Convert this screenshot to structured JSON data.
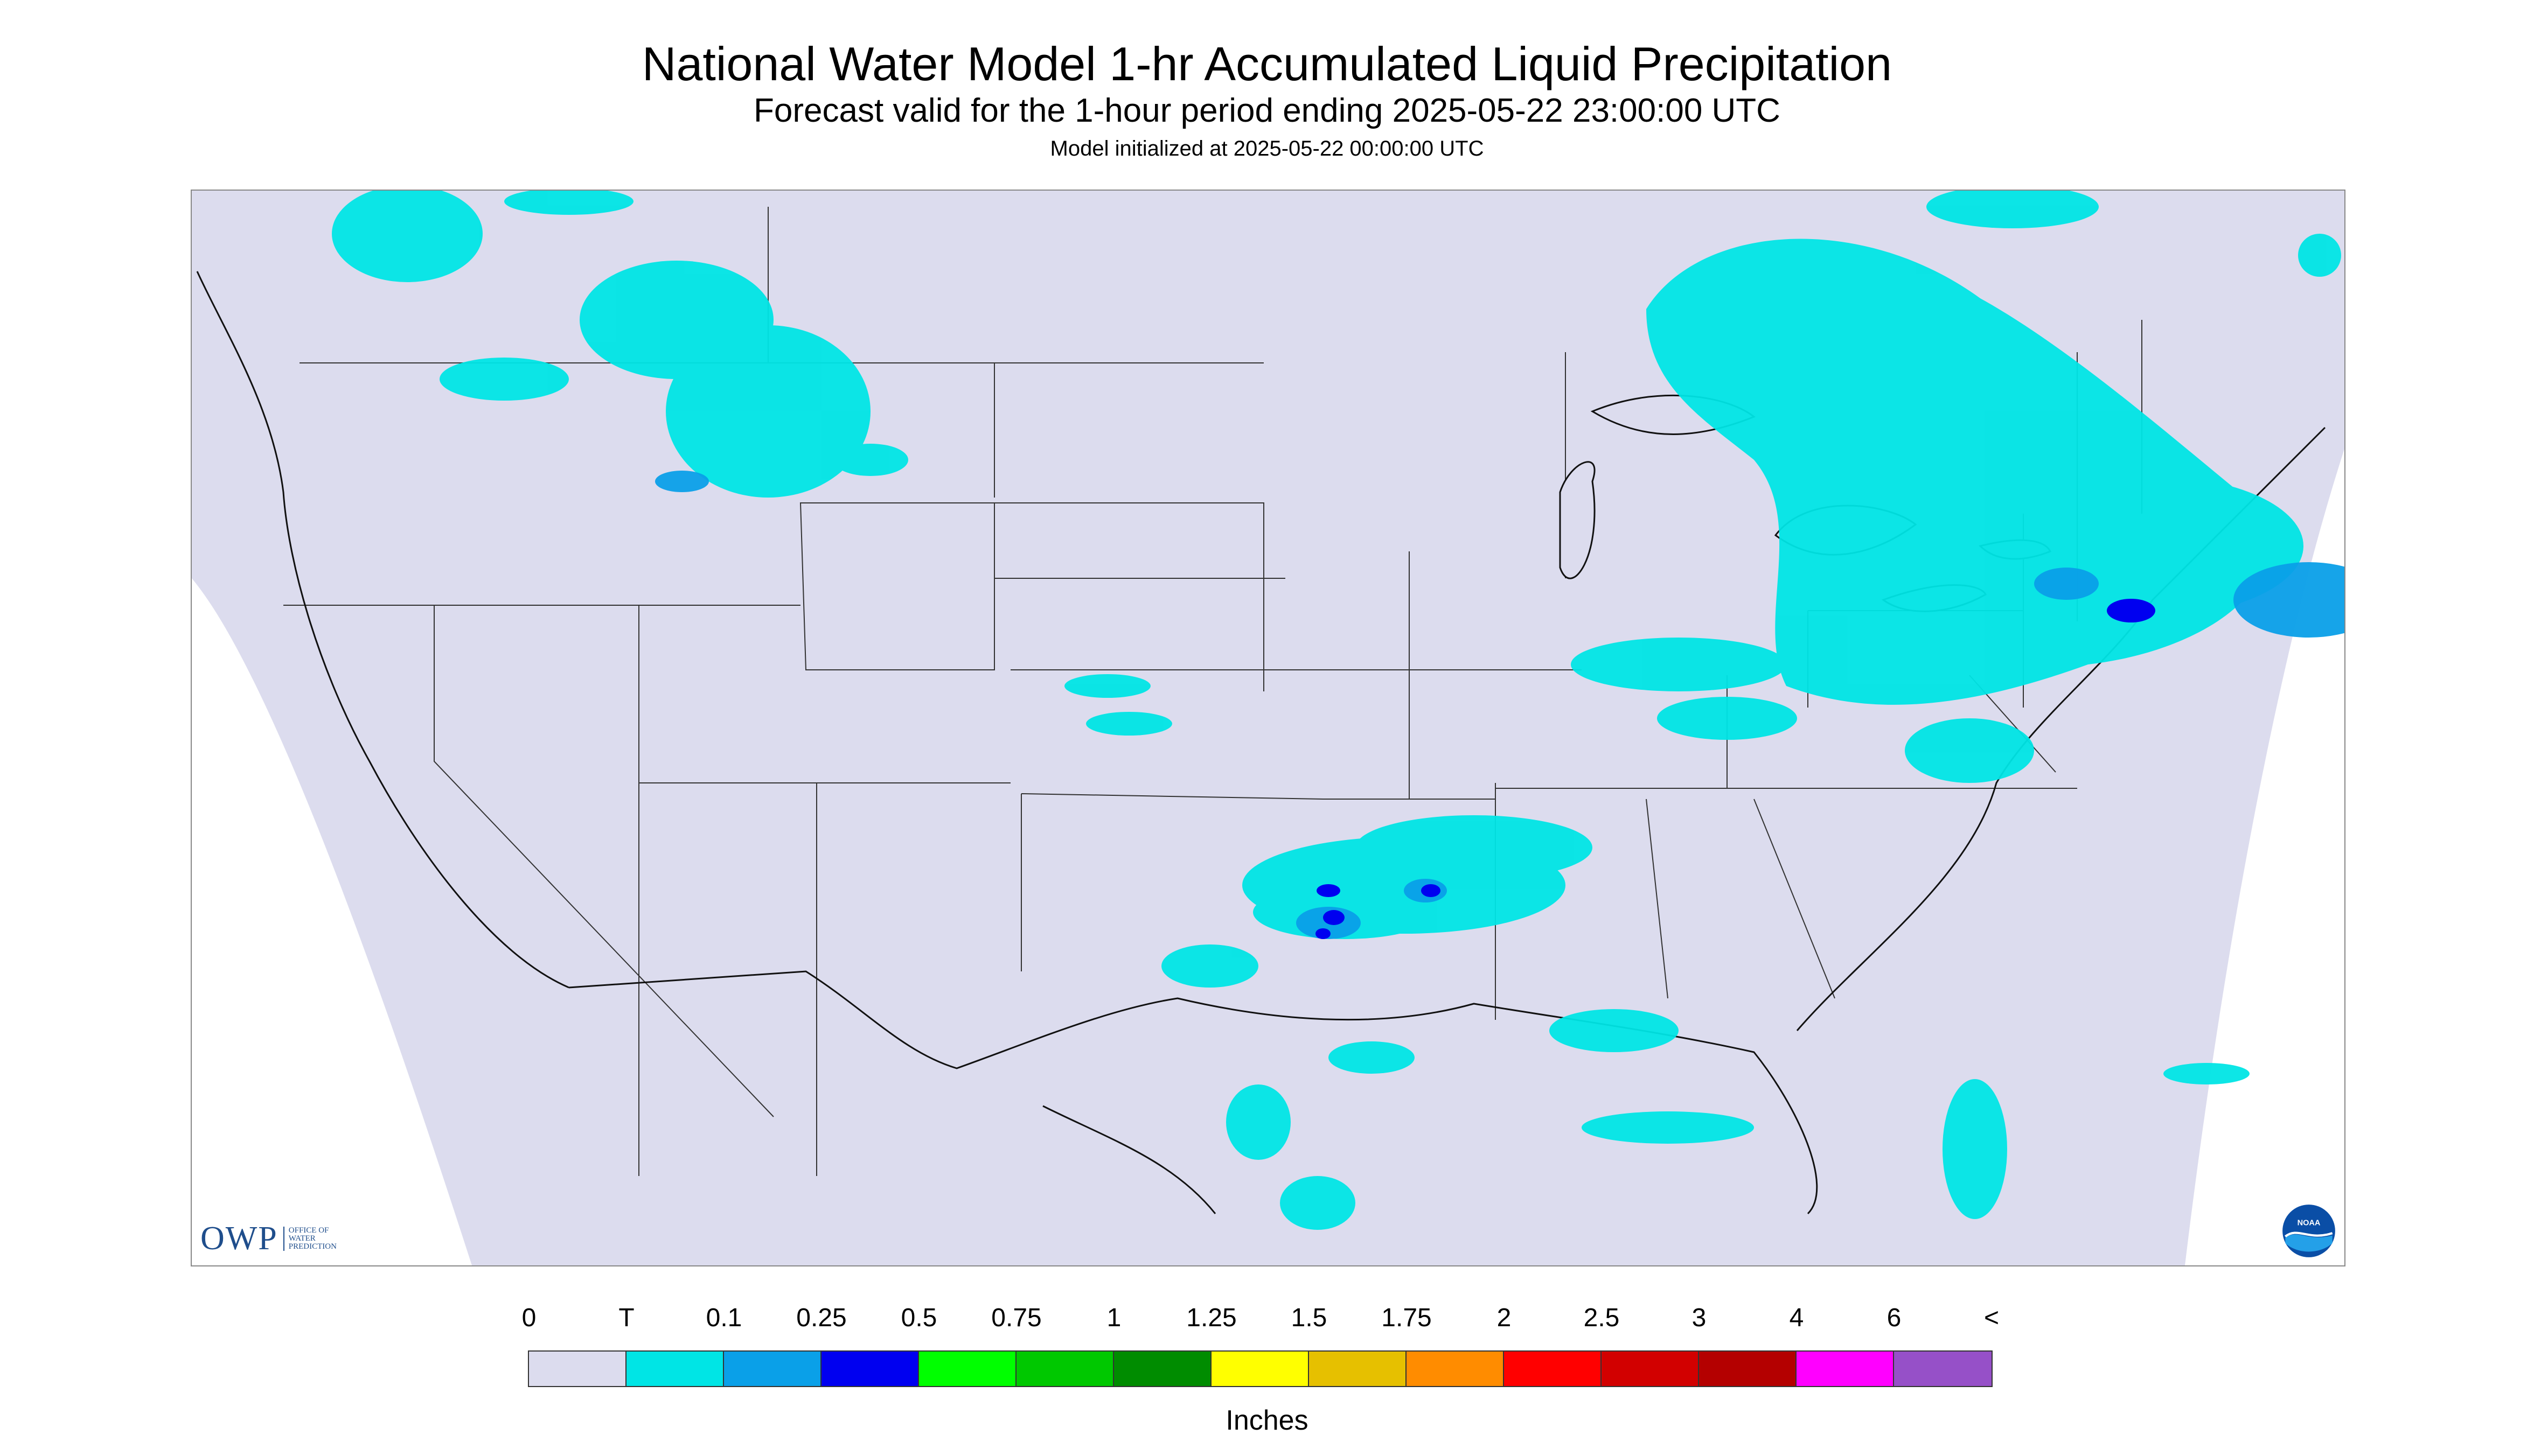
{
  "header": {
    "title": "National Water Model 1-hr Accumulated Liquid Precipitation",
    "subtitle": "Forecast valid for the 1-hour period ending 2025-05-22 23:00:00 UTC",
    "init_line": "Model initialized at 2025-05-22 00:00:00 UTC"
  },
  "logos": {
    "owp_mark": "OWP",
    "owp_text": "Office of Water Prediction",
    "noaa_text": "NOAA"
  },
  "legend": {
    "unit": "Inches",
    "labels": [
      "0",
      "T",
      "0.1",
      "0.25",
      "0.5",
      "0.75",
      "1",
      "1.25",
      "1.5",
      "1.75",
      "2",
      "2.5",
      "3",
      "4",
      "6",
      "<"
    ],
    "colors": [
      "#dcdcee",
      "#00e5e5",
      "#0aa0e8",
      "#0000f0",
      "#00ff00",
      "#00c800",
      "#008c00",
      "#ffff00",
      "#e6c000",
      "#ff8c00",
      "#ff0000",
      "#d20000",
      "#b40000",
      "#ff00ff",
      "#9650c8"
    ]
  },
  "map": {
    "background_color": "#dcdcee",
    "outside_color": "#ffffff",
    "precip_colors": {
      "trace": "#00e5e5",
      "light": "#0aa0e8",
      "moderate": "#0000f0"
    },
    "boundary_color": "#333333"
  }
}
